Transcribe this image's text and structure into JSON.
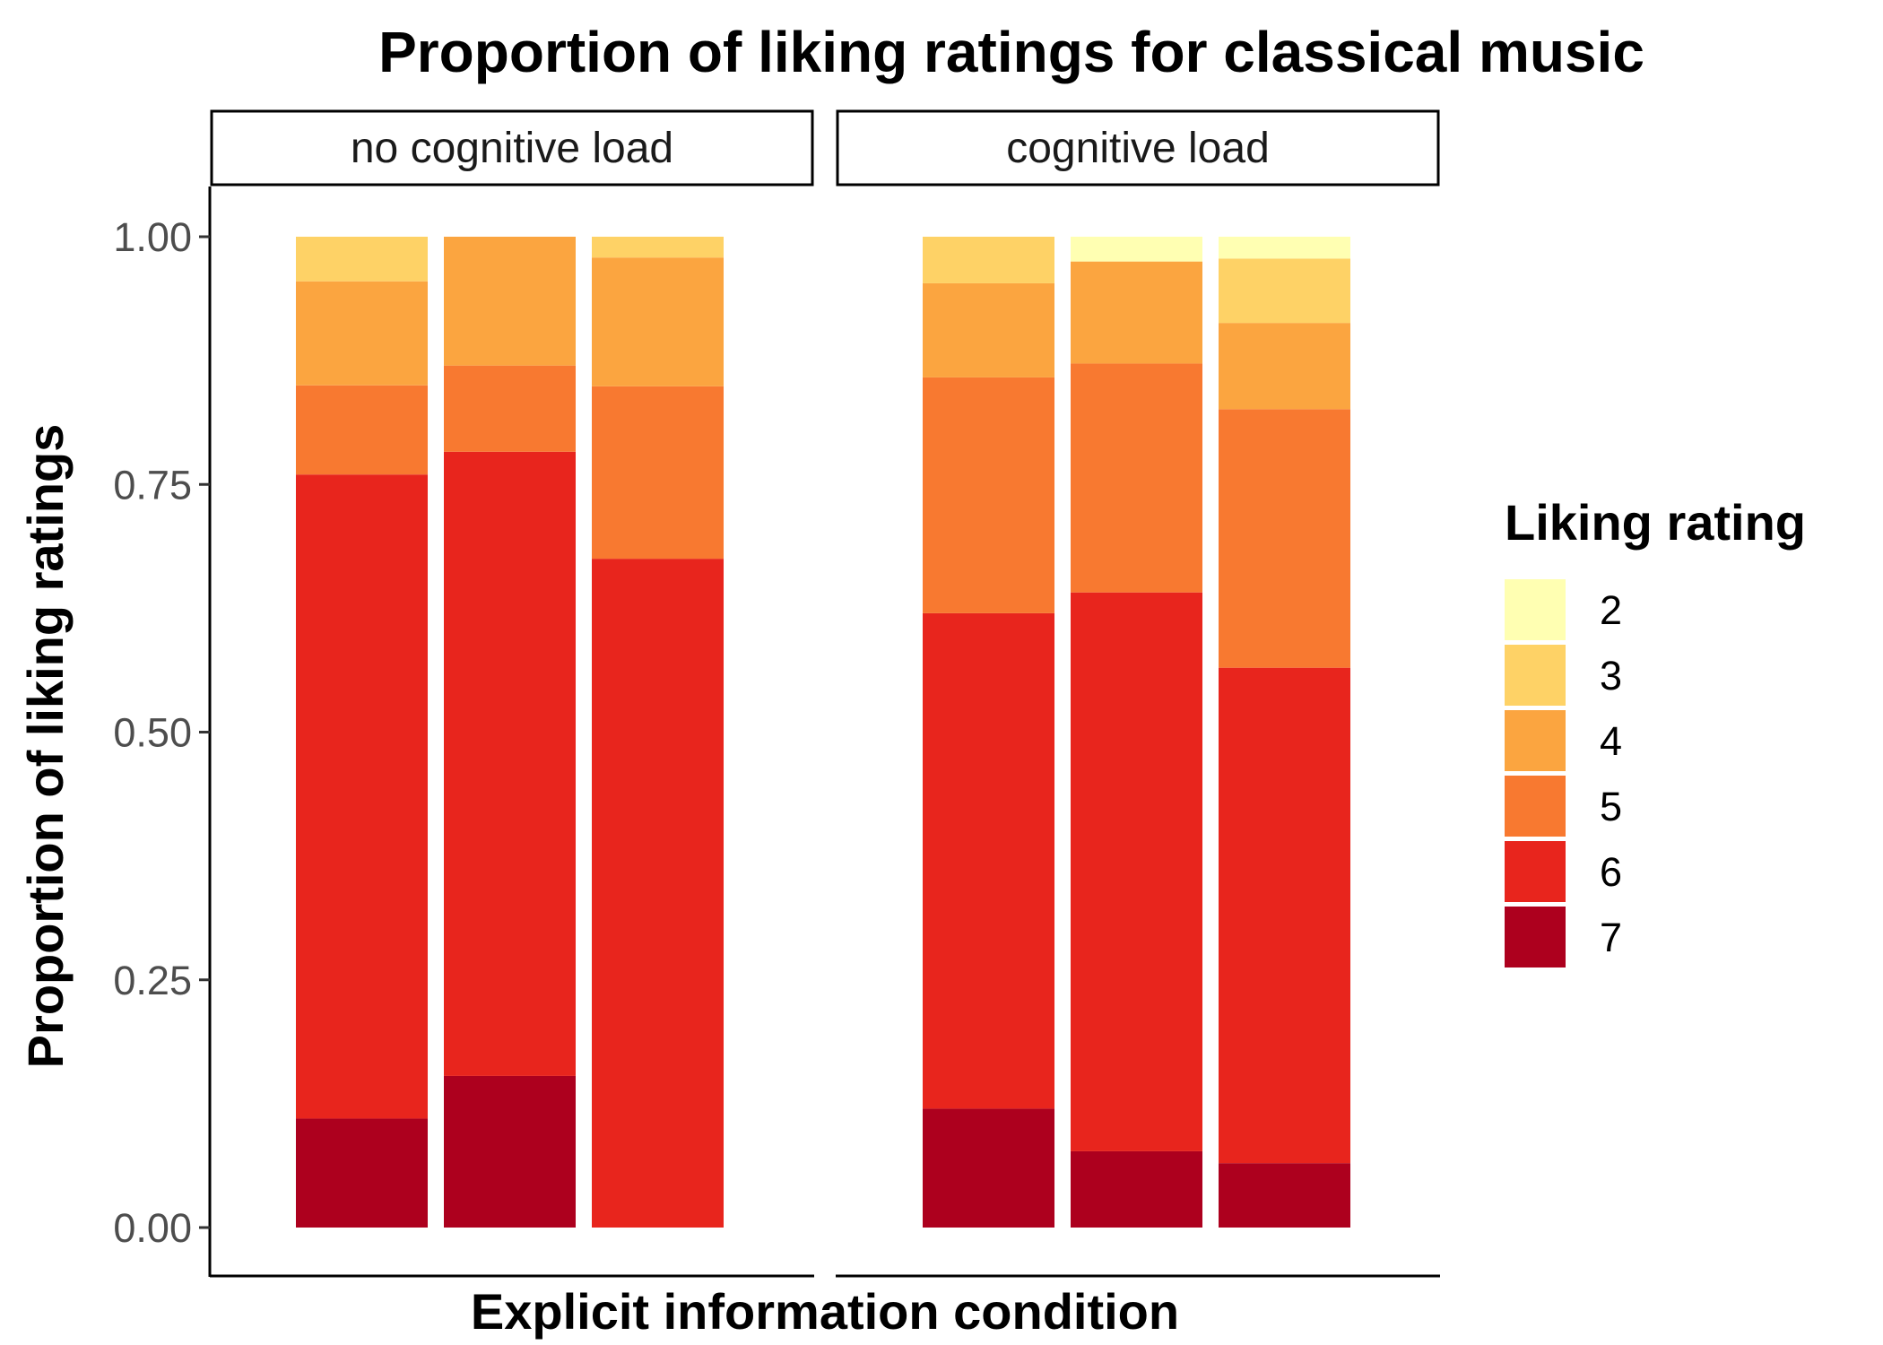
{
  "chart_data": {
    "type": "bar",
    "stacked": true,
    "position": "fill",
    "title": "Proportion of liking ratings for classical music",
    "xlabel": "Explicit information condition",
    "ylabel": "Proportion of liking ratings",
    "ylim": [
      0,
      1
    ],
    "yticks": [
      "0.00",
      "0.25",
      "0.50",
      "0.75",
      "1.00"
    ],
    "facets": [
      "no cognitive load",
      "cognitive load"
    ],
    "categories_per_facet": 3,
    "legend": {
      "title": "Liking rating",
      "position": "right",
      "entries": [
        {
          "label": "2",
          "color": "#ffffb2"
        },
        {
          "label": "3",
          "color": "#fed266"
        },
        {
          "label": "4",
          "color": "#fba540"
        },
        {
          "label": "5",
          "color": "#f87930"
        },
        {
          "label": "6",
          "color": "#e8251d"
        },
        {
          "label": "7",
          "color": "#ad001e"
        }
      ]
    },
    "series_order": [
      "7",
      "6",
      "5",
      "4",
      "3",
      "2"
    ],
    "panels": [
      {
        "facet": "no cognitive load",
        "bars": [
          {
            "7": 0.11,
            "6": 0.65,
            "5": 0.09,
            "4": 0.105,
            "3": 0.045,
            "2": 0.0
          },
          {
            "7": 0.153,
            "6": 0.63,
            "5": 0.087,
            "4": 0.13,
            "3": 0.0,
            "2": 0.0
          },
          {
            "7": 0.0,
            "6": 0.675,
            "5": 0.174,
            "4": 0.13,
            "3": 0.021,
            "2": 0.0
          }
        ]
      },
      {
        "facet": "cognitive load",
        "bars": [
          {
            "7": 0.12,
            "6": 0.5,
            "5": 0.238,
            "4": 0.095,
            "3": 0.047,
            "2": 0.0
          },
          {
            "7": 0.077,
            "6": 0.564,
            "5": 0.231,
            "4": 0.103,
            "3": 0.0,
            "2": 0.025
          },
          {
            "7": 0.065,
            "6": 0.5,
            "5": 0.261,
            "4": 0.087,
            "3": 0.065,
            "2": 0.022
          }
        ]
      }
    ]
  }
}
